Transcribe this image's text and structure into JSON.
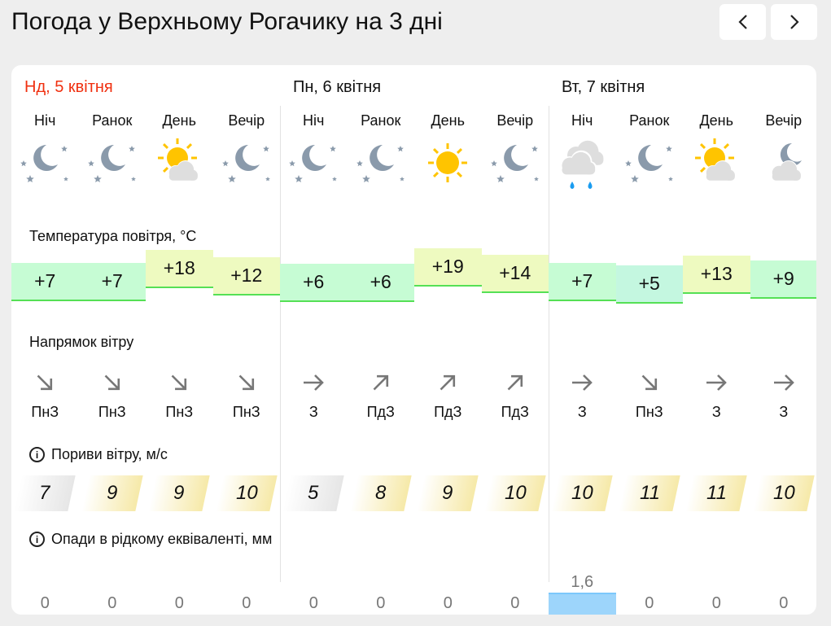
{
  "title": "Погода у Верхньому Рогачику на 3 дні",
  "nav": {
    "prev_icon": "chevron-left-icon",
    "next_icon": "chevron-right-icon"
  },
  "labels": {
    "temperature": "Температура повітря, °C",
    "wind_direction": "Напрямок вітру",
    "wind_gusts": "Пориви вітру, м/с",
    "precipitation": "Опади в рідкому еквіваленті, мм"
  },
  "colors": {
    "today": "#f03010",
    "temp_cool": "#c6fcd4",
    "temp_warm": "#eefac0",
    "gust_strong": "#f6e9a8",
    "gust_weak": "#e6e6e6",
    "precip": "#9dd5fb"
  },
  "days": [
    {
      "date": "Нд, 5 квітня",
      "today": true,
      "periods": [
        {
          "name": "Ніч",
          "icon": "moon-stars",
          "temp": "+7",
          "t": 7,
          "wind_dir": "ПнЗ",
          "wind_rot": 45,
          "gust": "7",
          "precip": "0"
        },
        {
          "name": "Ранок",
          "icon": "moon-stars",
          "temp": "+7",
          "t": 7,
          "wind_dir": "ПнЗ",
          "wind_rot": 45,
          "gust": "9",
          "precip": "0"
        },
        {
          "name": "День",
          "icon": "sun-cloud",
          "temp": "+18",
          "t": 18,
          "wind_dir": "ПнЗ",
          "wind_rot": 45,
          "gust": "9",
          "precip": "0"
        },
        {
          "name": "Вечір",
          "icon": "moon-stars",
          "temp": "+12",
          "t": 12,
          "wind_dir": "ПнЗ",
          "wind_rot": 45,
          "gust": "10",
          "precip": "0"
        }
      ]
    },
    {
      "date": "Пн, 6 квітня",
      "today": false,
      "periods": [
        {
          "name": "Ніч",
          "icon": "moon-stars",
          "temp": "+6",
          "t": 6,
          "wind_dir": "З",
          "wind_rot": 0,
          "gust": "5",
          "precip": "0"
        },
        {
          "name": "Ранок",
          "icon": "moon-stars",
          "temp": "+6",
          "t": 6,
          "wind_dir": "ПдЗ",
          "wind_rot": -45,
          "gust": "8",
          "precip": "0"
        },
        {
          "name": "День",
          "icon": "sun",
          "temp": "+19",
          "t": 19,
          "wind_dir": "ПдЗ",
          "wind_rot": -45,
          "gust": "9",
          "precip": "0"
        },
        {
          "name": "Вечір",
          "icon": "moon-stars",
          "temp": "+14",
          "t": 14,
          "wind_dir": "ПдЗ",
          "wind_rot": -45,
          "gust": "10",
          "precip": "0"
        }
      ]
    },
    {
      "date": "Вт, 7 квітня",
      "today": false,
      "periods": [
        {
          "name": "Ніч",
          "icon": "rain-cloud",
          "temp": "+7",
          "t": 7,
          "wind_dir": "З",
          "wind_rot": 0,
          "gust": "10",
          "precip": "1,6",
          "precip_mm": 1.6
        },
        {
          "name": "Ранок",
          "icon": "moon-stars",
          "temp": "+5",
          "t": 5,
          "wind_dir": "ПнЗ",
          "wind_rot": 45,
          "gust": "11",
          "precip": "0"
        },
        {
          "name": "День",
          "icon": "sun-cloud",
          "temp": "+13",
          "t": 13,
          "wind_dir": "З",
          "wind_rot": 0,
          "gust": "11",
          "precip": "0"
        },
        {
          "name": "Вечір",
          "icon": "moon-cloud",
          "temp": "+9",
          "t": 9,
          "wind_dir": "З",
          "wind_rot": 0,
          "gust": "10",
          "precip": "0"
        }
      ]
    }
  ]
}
